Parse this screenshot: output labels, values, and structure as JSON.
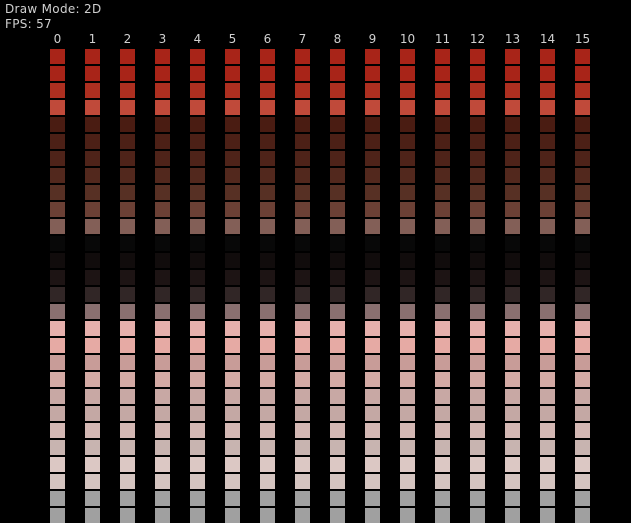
{
  "hud": {
    "draw_mode": "Draw Mode: 2D",
    "fps": "FPS: 57"
  },
  "columns": [
    "0",
    "1",
    "2",
    "3",
    "4",
    "5",
    "6",
    "7",
    "8",
    "9",
    "10",
    "11",
    "12",
    "13",
    "14",
    "15"
  ],
  "swatch_colors": [
    "#a82418",
    "#a82418",
    "#ad2f20",
    "#c04a3a",
    "#4a1c12",
    "#4c2016",
    "#4e2319",
    "#52281d",
    "#573024",
    "#6b4035",
    "#835f57",
    "#080808",
    "#110c0c",
    "#1d1414",
    "#312626",
    "#8a7070",
    "#e6b0ac",
    "#e6aaa4",
    "#c89c98",
    "#d4aaa4",
    "#c8a8a4",
    "#c4a8a4",
    "#d4b8b4",
    "#c8b4b0",
    "#dcc8c4",
    "#d4c4c0",
    "#a0a0a0",
    "#a0a0a0"
  ]
}
